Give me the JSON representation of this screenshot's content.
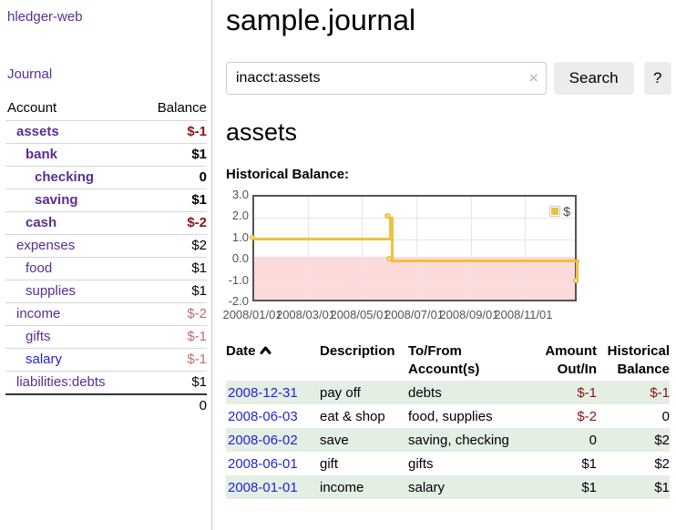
{
  "colors": {
    "accent_purple": "#5b2d91",
    "link_blue": "#2323dd",
    "negative_dark": "#8b1414",
    "negative_soft": "#bd6e6e",
    "row_stripe_green": "#e3efe3",
    "chart_line_yellow": "#edc240",
    "chart_negative_fill": "#ffd9d9",
    "chart_zero_line": "#8b0000"
  },
  "sidebar": {
    "brand": "hledger-web",
    "nav_journal": "Journal",
    "accounts_table": {
      "col_account": "Account",
      "col_balance": "Balance",
      "rows": [
        {
          "name": "assets",
          "balance": "$-1",
          "depth": 1,
          "bold": true,
          "link_color": "purple",
          "balance_color": "neg_dark"
        },
        {
          "name": "bank",
          "balance": "$1",
          "depth": 2,
          "bold": true,
          "link_color": "purple",
          "balance_color": "black"
        },
        {
          "name": "checking",
          "balance": "0",
          "depth": 3,
          "bold": true,
          "link_color": "purple",
          "balance_color": "black"
        },
        {
          "name": "saving",
          "balance": "$1",
          "depth": 3,
          "bold": true,
          "link_color": "purple",
          "balance_color": "black"
        },
        {
          "name": "cash",
          "balance": "$-2",
          "depth": 2,
          "bold": true,
          "link_color": "purple",
          "balance_color": "neg_dark"
        },
        {
          "name": "expenses",
          "balance": "$2",
          "depth": 1,
          "bold": false,
          "link_color": "purple",
          "balance_color": "black"
        },
        {
          "name": "food",
          "balance": "$1",
          "depth": 2,
          "bold": false,
          "link_color": "purple",
          "balance_color": "black"
        },
        {
          "name": "supplies",
          "balance": "$1",
          "depth": 2,
          "bold": false,
          "link_color": "purple",
          "balance_color": "black"
        },
        {
          "name": "income",
          "balance": "$-2",
          "depth": 1,
          "bold": false,
          "link_color": "purple",
          "balance_color": "neg_soft"
        },
        {
          "name": "gifts",
          "balance": "$-1",
          "depth": 2,
          "bold": false,
          "link_color": "purple",
          "balance_color": "neg_soft"
        },
        {
          "name": "salary",
          "balance": "$-1",
          "depth": 2,
          "bold": false,
          "link_color": "blue",
          "balance_color": "neg_soft"
        },
        {
          "name": "liabilities:debts",
          "balance": "$1",
          "depth": 1,
          "bold": false,
          "link_color": "purple",
          "balance_color": "black"
        }
      ],
      "total": "0"
    }
  },
  "main": {
    "title": "sample.journal",
    "search": {
      "value": "inacct:assets",
      "clear_icon": "×",
      "search_button": "Search",
      "help_button": "?"
    },
    "account_heading": "assets",
    "chart_title": "Historical Balance:"
  },
  "register": {
    "headers": {
      "date": "Date",
      "description": "Description",
      "tofrom": [
        "To/From",
        "Account(s)"
      ],
      "amount": [
        "Amount",
        "Out/In"
      ],
      "balance": [
        "Historical",
        "Balance"
      ]
    },
    "rows": [
      {
        "date": "2008-12-31",
        "description": "pay off",
        "accounts": "debts",
        "amount": "$-1",
        "balance": "$-1"
      },
      {
        "date": "2008-06-03",
        "description": "eat & shop",
        "accounts": "food, supplies",
        "amount": "$-2",
        "balance": "0"
      },
      {
        "date": "2008-06-02",
        "description": "save",
        "accounts": "saving, checking",
        "amount": "0",
        "balance": "$2"
      },
      {
        "date": "2008-06-01",
        "description": "gift",
        "accounts": "gifts",
        "amount": "$1",
        "balance": "$2"
      },
      {
        "date": "2008-01-01",
        "description": "income",
        "accounts": "salary",
        "amount": "$1",
        "balance": "$1"
      }
    ]
  },
  "chart_data": {
    "type": "line",
    "step": true,
    "title": "Historical Balance:",
    "series": [
      {
        "name": "$",
        "x": [
          "2008-01-01",
          "2008-06-01",
          "2008-06-02",
          "2008-06-03",
          "2008-12-31"
        ],
        "values": [
          1,
          2,
          2,
          0,
          -1
        ]
      }
    ],
    "x_range": [
      "2008-01-01",
      "2008-12-31"
    ],
    "ylim": [
      -2,
      3
    ],
    "ytick_labels": [
      "3.0",
      "2.0",
      "1.0",
      "0.0",
      "-1.0",
      "-2.0"
    ],
    "yticks": [
      3,
      2,
      1,
      0,
      -1,
      -2
    ],
    "xtick_labels": [
      "2008/01/01",
      "2008/03/01",
      "2008/05/01",
      "2008/07/01",
      "2008/09/01",
      "2008/11/01"
    ],
    "grid": true,
    "negative_region_shaded": true,
    "legend_position": "top-right",
    "legend_label": "$"
  }
}
